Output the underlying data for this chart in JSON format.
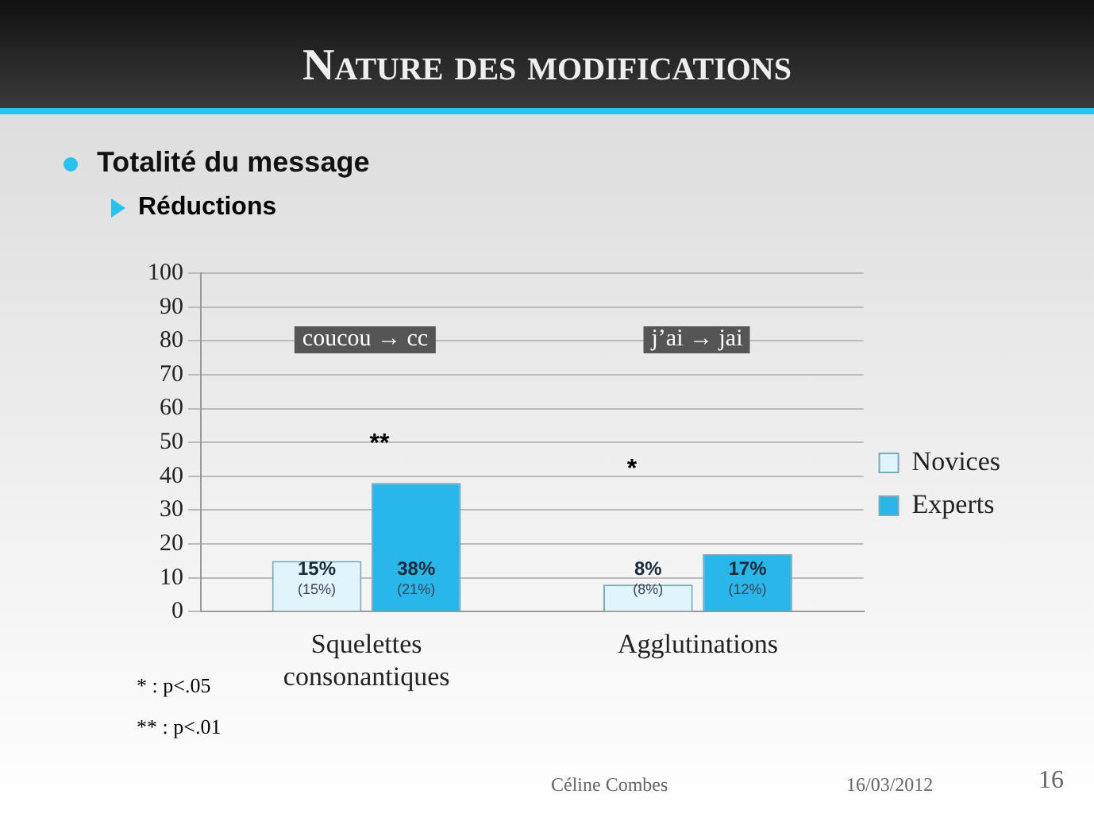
{
  "chart_data": {
    "type": "bar",
    "title": "Nature des modifications",
    "subtitle": "Totalité du message",
    "categories": [
      "Squelettes consonantiques",
      "Agglutinations"
    ],
    "series": [
      {
        "name": "Novices",
        "color": "#dff4fb",
        "values": [
          15,
          8
        ],
        "value_labels": [
          "15%\n(15%)",
          "8%\n(8%)"
        ]
      },
      {
        "name": "Experts",
        "color": "#29b6e8",
        "values": [
          38,
          17
        ],
        "value_labels": [
          "38%\n(21%)",
          "17%\n(12%)"
        ]
      }
    ],
    "ylim": [
      0,
      100
    ],
    "yticks": [
      0,
      10,
      20,
      30,
      40,
      50,
      60,
      70,
      80,
      90,
      100
    ],
    "grid": "y",
    "legend": "right",
    "annotations": [
      "coucou → cc",
      "j’ai → jai",
      "**",
      "*",
      "Réductions",
      "* : p<.05",
      "** : p<.01",
      "Céline Combes",
      "16/03/2012",
      "16"
    ]
  }
}
